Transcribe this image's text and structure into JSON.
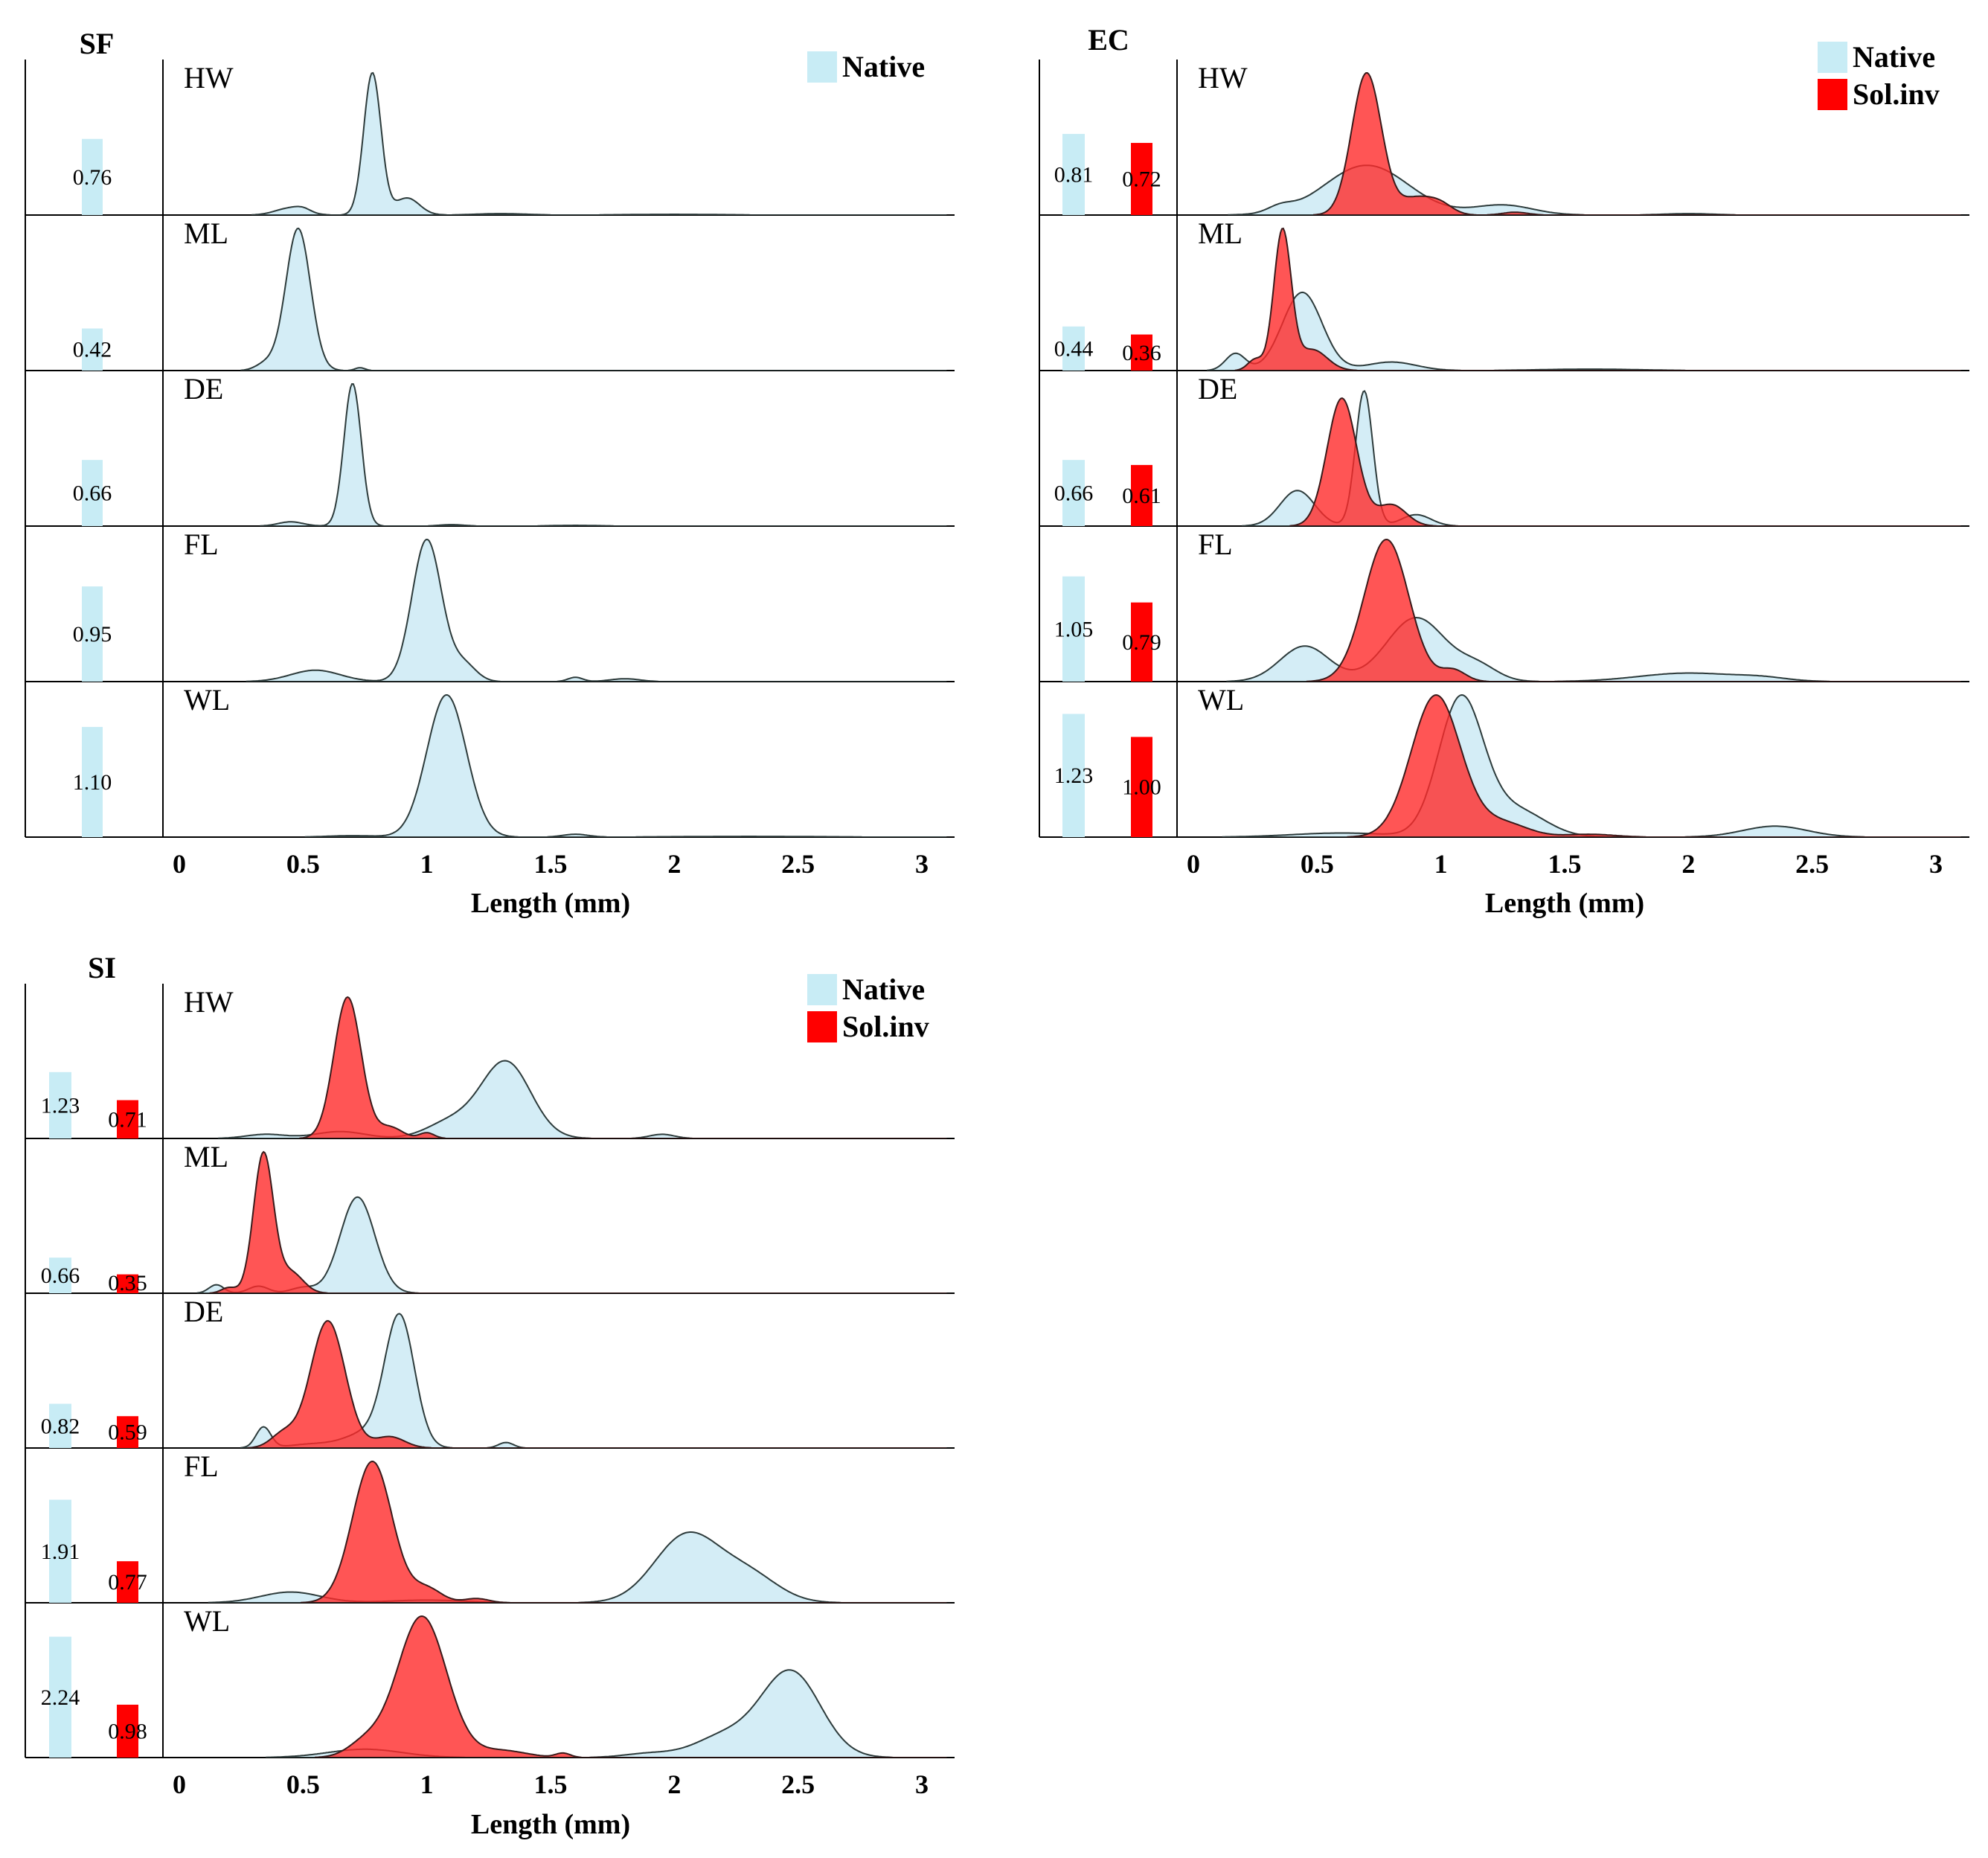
{
  "colors": {
    "native": "#c8ecf5",
    "invasive": "#ff0000",
    "native_density": "#cdeaf4",
    "invasive_density": "#ff2a2a"
  },
  "chart_data": [
    {
      "type": "area",
      "title": "SF",
      "xlabel": "Length (mm)",
      "ylabel": "",
      "xlim": [
        0,
        3
      ],
      "xticks": [
        "0",
        "0.5",
        "1",
        "1.5",
        "2",
        "2.5",
        "3"
      ],
      "legend": {
        "position": "top-right",
        "entries": [
          "Native"
        ]
      },
      "traits": [
        {
          "name": "HW",
          "bars": [
            {
              "series": "Native",
              "value": "0.76"
            }
          ],
          "densities": [
            {
              "series": "Native",
              "components": [
                [
                  0.45,
                  0.06,
                  0.05
                ],
                [
                  0.5,
                  0.03,
                  0.02
                ],
                [
                  0.78,
                  0.035,
                  1.0
                ],
                [
                  0.92,
                  0.05,
                  0.12
                ]
              ],
              "tail": [
                [
                  1.3,
                  0.1,
                  0.01
                ],
                [
                  2.0,
                  0.2,
                  0.005
                ]
              ]
            }
          ]
        },
        {
          "name": "ML",
          "bars": [
            {
              "series": "Native",
              "value": "0.42"
            }
          ],
          "densities": [
            {
              "series": "Native",
              "components": [
                [
                  0.48,
                  0.05,
                  1.0
                ],
                [
                  0.35,
                  0.04,
                  0.05
                ],
                [
                  0.73,
                  0.02,
                  0.02
                ]
              ],
              "tail": []
            }
          ]
        },
        {
          "name": "DE",
          "bars": [
            {
              "series": "Native",
              "value": "0.66"
            }
          ],
          "densities": [
            {
              "series": "Native",
              "components": [
                [
                  0.7,
                  0.035,
                  1.0
                ],
                [
                  0.45,
                  0.05,
                  0.03
                ],
                [
                  1.1,
                  0.05,
                  0.01
                ]
              ],
              "tail": [
                [
                  1.6,
                  0.1,
                  0.005
                ]
              ]
            }
          ]
        },
        {
          "name": "FL",
          "bars": [
            {
              "series": "Native",
              "value": "0.95"
            }
          ],
          "densities": [
            {
              "series": "Native",
              "components": [
                [
                  1.0,
                  0.06,
                  1.0
                ],
                [
                  0.55,
                  0.1,
                  0.08
                ],
                [
                  1.15,
                  0.05,
                  0.12
                ],
                [
                  1.6,
                  0.03,
                  0.03
                ],
                [
                  1.8,
                  0.06,
                  0.02
                ]
              ],
              "tail": []
            }
          ]
        },
        {
          "name": "WL",
          "bars": [
            {
              "series": "Native",
              "value": "1.10"
            }
          ],
          "densities": [
            {
              "series": "Native",
              "components": [
                [
                  1.08,
                  0.08,
                  1.0
                ],
                [
                  1.6,
                  0.05,
                  0.02
                ]
              ],
              "tail": [
                [
                  0.7,
                  0.1,
                  0.01
                ],
                [
                  2.3,
                  0.3,
                  0.005
                ]
              ]
            }
          ]
        }
      ]
    },
    {
      "type": "area",
      "title": "EC",
      "xlabel": "Length (mm)",
      "ylabel": "",
      "xlim": [
        0,
        3
      ],
      "xticks": [
        "0",
        "0.5",
        "1",
        "1.5",
        "2",
        "2.5",
        "3"
      ],
      "legend": {
        "position": "top-right",
        "entries": [
          "Native",
          "Sol.inv"
        ]
      },
      "traits": [
        {
          "name": "HW",
          "bars": [
            {
              "series": "Native",
              "value": "0.81"
            },
            {
              "series": "Sol.inv",
              "value": "0.72"
            }
          ],
          "densities": [
            {
              "series": "Native",
              "components": [
                [
                  0.7,
                  0.17,
                  0.35
                ],
                [
                  1.25,
                  0.12,
                  0.07
                ],
                [
                  2.0,
                  0.1,
                  0.01
                ]
              ],
              "tail": [
                [
                  0.35,
                  0.05,
                  0.04
                ]
              ]
            },
            {
              "series": "Sol.inv",
              "components": [
                [
                  0.7,
                  0.06,
                  1.0
                ],
                [
                  0.9,
                  0.07,
                  0.12
                ],
                [
                  1.0,
                  0.05,
                  0.06
                ],
                [
                  1.3,
                  0.05,
                  0.02
                ]
              ],
              "tail": []
            }
          ]
        },
        {
          "name": "ML",
          "bars": [
            {
              "series": "Native",
              "value": "0.44"
            },
            {
              "series": "Sol.inv",
              "value": "0.36"
            }
          ],
          "densities": [
            {
              "series": "Native",
              "components": [
                [
                  0.44,
                  0.08,
                  0.55
                ],
                [
                  0.17,
                  0.04,
                  0.12
                ],
                [
                  0.8,
                  0.1,
                  0.06
                ]
              ],
              "tail": [
                [
                  1.6,
                  0.2,
                  0.01
                ]
              ]
            },
            {
              "series": "Sol.inv",
              "components": [
                [
                  0.36,
                  0.035,
                  1.0
                ],
                [
                  0.48,
                  0.06,
                  0.15
                ],
                [
                  0.25,
                  0.03,
                  0.08
                ]
              ],
              "tail": []
            }
          ]
        },
        {
          "name": "DE",
          "bars": [
            {
              "series": "Native",
              "value": "0.66"
            },
            {
              "series": "Sol.inv",
              "value": "0.61"
            }
          ],
          "densities": [
            {
              "series": "Native",
              "components": [
                [
                  0.69,
                  0.035,
                  0.95
                ],
                [
                  0.42,
                  0.07,
                  0.25
                ],
                [
                  0.9,
                  0.06,
                  0.08
                ]
              ],
              "tail": []
            },
            {
              "series": "Sol.inv",
              "components": [
                [
                  0.6,
                  0.06,
                  0.9
                ],
                [
                  0.8,
                  0.06,
                  0.15
                ]
              ],
              "tail": []
            }
          ]
        },
        {
          "name": "FL",
          "bars": [
            {
              "series": "Native",
              "value": "1.05"
            },
            {
              "series": "Sol.inv",
              "value": "0.79"
            }
          ],
          "densities": [
            {
              "series": "Native",
              "components": [
                [
                  0.9,
                  0.12,
                  0.45
                ],
                [
                  0.45,
                  0.1,
                  0.25
                ],
                [
                  1.15,
                  0.08,
                  0.1
                ],
                [
                  2.0,
                  0.2,
                  0.06
                ],
                [
                  2.3,
                  0.1,
                  0.02
                ]
              ],
              "tail": []
            },
            {
              "series": "Sol.inv",
              "components": [
                [
                  0.78,
                  0.09,
                  1.0
                ],
                [
                  1.05,
                  0.05,
                  0.08
                ]
              ],
              "tail": []
            }
          ]
        },
        {
          "name": "WL",
          "bars": [
            {
              "series": "Native",
              "value": "1.23"
            },
            {
              "series": "Sol.inv",
              "value": "1.00"
            }
          ],
          "densities": [
            {
              "series": "Native",
              "components": [
                [
                  1.08,
                  0.09,
                  1.0
                ],
                [
                  1.3,
                  0.12,
                  0.2
                ],
                [
                  2.35,
                  0.13,
                  0.08
                ],
                [
                  0.6,
                  0.2,
                  0.03
                ]
              ],
              "tail": []
            },
            {
              "series": "Sol.inv",
              "components": [
                [
                  0.98,
                  0.1,
                  1.0
                ],
                [
                  1.25,
                  0.1,
                  0.1
                ],
                [
                  1.6,
                  0.1,
                  0.02
                ]
              ],
              "tail": []
            }
          ]
        }
      ]
    },
    {
      "type": "area",
      "title": "SI",
      "xlabel": "Length (mm)",
      "ylabel": "",
      "xlim": [
        0,
        3
      ],
      "xticks": [
        "0",
        "0.5",
        "1",
        "1.5",
        "2",
        "2.5",
        "3"
      ],
      "legend": {
        "position": "top-right",
        "entries": [
          "Native",
          "Sol.inv"
        ]
      },
      "traits": [
        {
          "name": "HW",
          "bars": [
            {
              "series": "Native",
              "value": "1.23"
            },
            {
              "series": "Sol.inv",
              "value": "0.71"
            }
          ],
          "densities": [
            {
              "series": "Native",
              "components": [
                [
                  1.32,
                  0.1,
                  0.55
                ],
                [
                  1.1,
                  0.1,
                  0.12
                ],
                [
                  0.65,
                  0.1,
                  0.05
                ],
                [
                  0.35,
                  0.08,
                  0.03
                ],
                [
                  1.95,
                  0.05,
                  0.03
                ]
              ],
              "tail": []
            },
            {
              "series": "Sol.inv",
              "components": [
                [
                  0.68,
                  0.055,
                  1.0
                ],
                [
                  0.85,
                  0.05,
                  0.08
                ],
                [
                  1.0,
                  0.03,
                  0.04
                ]
              ],
              "tail": []
            }
          ]
        },
        {
          "name": "ML",
          "bars": [
            {
              "series": "Native",
              "value": "0.66"
            },
            {
              "series": "Sol.inv",
              "value": "0.35"
            }
          ],
          "densities": [
            {
              "series": "Native",
              "components": [
                [
                  0.72,
                  0.07,
                  0.68
                ],
                [
                  0.15,
                  0.03,
                  0.06
                ],
                [
                  0.32,
                  0.04,
                  0.05
                ],
                [
                  0.5,
                  0.05,
                  0.04
                ]
              ],
              "tail": []
            },
            {
              "series": "Sol.inv",
              "components": [
                [
                  0.34,
                  0.04,
                  1.0
                ],
                [
                  0.45,
                  0.05,
                  0.15
                ],
                [
                  0.2,
                  0.03,
                  0.04
                ]
              ],
              "tail": []
            }
          ]
        },
        {
          "name": "DE",
          "bars": [
            {
              "series": "Native",
              "value": "0.82"
            },
            {
              "series": "Sol.inv",
              "value": "0.59"
            }
          ],
          "densities": [
            {
              "series": "Native",
              "components": [
                [
                  0.89,
                  0.06,
                  0.95
                ],
                [
                  0.34,
                  0.03,
                  0.15
                ],
                [
                  0.75,
                  0.08,
                  0.1
                ],
                [
                  1.32,
                  0.03,
                  0.04
                ],
                [
                  0.55,
                  0.1,
                  0.03
                ]
              ],
              "tail": []
            },
            {
              "series": "Sol.inv",
              "components": [
                [
                  0.6,
                  0.07,
                  0.9
                ],
                [
                  0.42,
                  0.05,
                  0.1
                ],
                [
                  0.85,
                  0.06,
                  0.08
                ]
              ],
              "tail": []
            }
          ]
        },
        {
          "name": "FL",
          "bars": [
            {
              "series": "Native",
              "value": "1.91"
            },
            {
              "series": "Sol.inv",
              "value": "0.77"
            }
          ],
          "densities": [
            {
              "series": "Native",
              "components": [
                [
                  2.05,
                  0.13,
                  0.5
                ],
                [
                  2.3,
                  0.12,
                  0.2
                ],
                [
                  0.45,
                  0.12,
                  0.08
                ],
                [
                  1.0,
                  0.15,
                  0.02
                ]
              ],
              "tail": []
            },
            {
              "series": "Sol.inv",
              "components": [
                [
                  0.78,
                  0.08,
                  1.0
                ],
                [
                  1.0,
                  0.06,
                  0.1
                ],
                [
                  1.2,
                  0.05,
                  0.03
                ]
              ],
              "tail": []
            }
          ]
        },
        {
          "name": "WL",
          "bars": [
            {
              "series": "Native",
              "value": "2.24"
            },
            {
              "series": "Sol.inv",
              "value": "0.98"
            }
          ],
          "densities": [
            {
              "series": "Native",
              "components": [
                [
                  2.47,
                  0.12,
                  0.62
                ],
                [
                  2.2,
                  0.12,
                  0.15
                ],
                [
                  0.75,
                  0.15,
                  0.06
                ],
                [
                  1.9,
                  0.1,
                  0.03
                ]
              ],
              "tail": []
            },
            {
              "series": "Sol.inv",
              "components": [
                [
                  0.98,
                  0.1,
                  1.0
                ],
                [
                  0.75,
                  0.07,
                  0.1
                ],
                [
                  1.3,
                  0.1,
                  0.05
                ],
                [
                  1.55,
                  0.03,
                  0.03
                ]
              ],
              "tail": []
            }
          ]
        }
      ]
    }
  ]
}
